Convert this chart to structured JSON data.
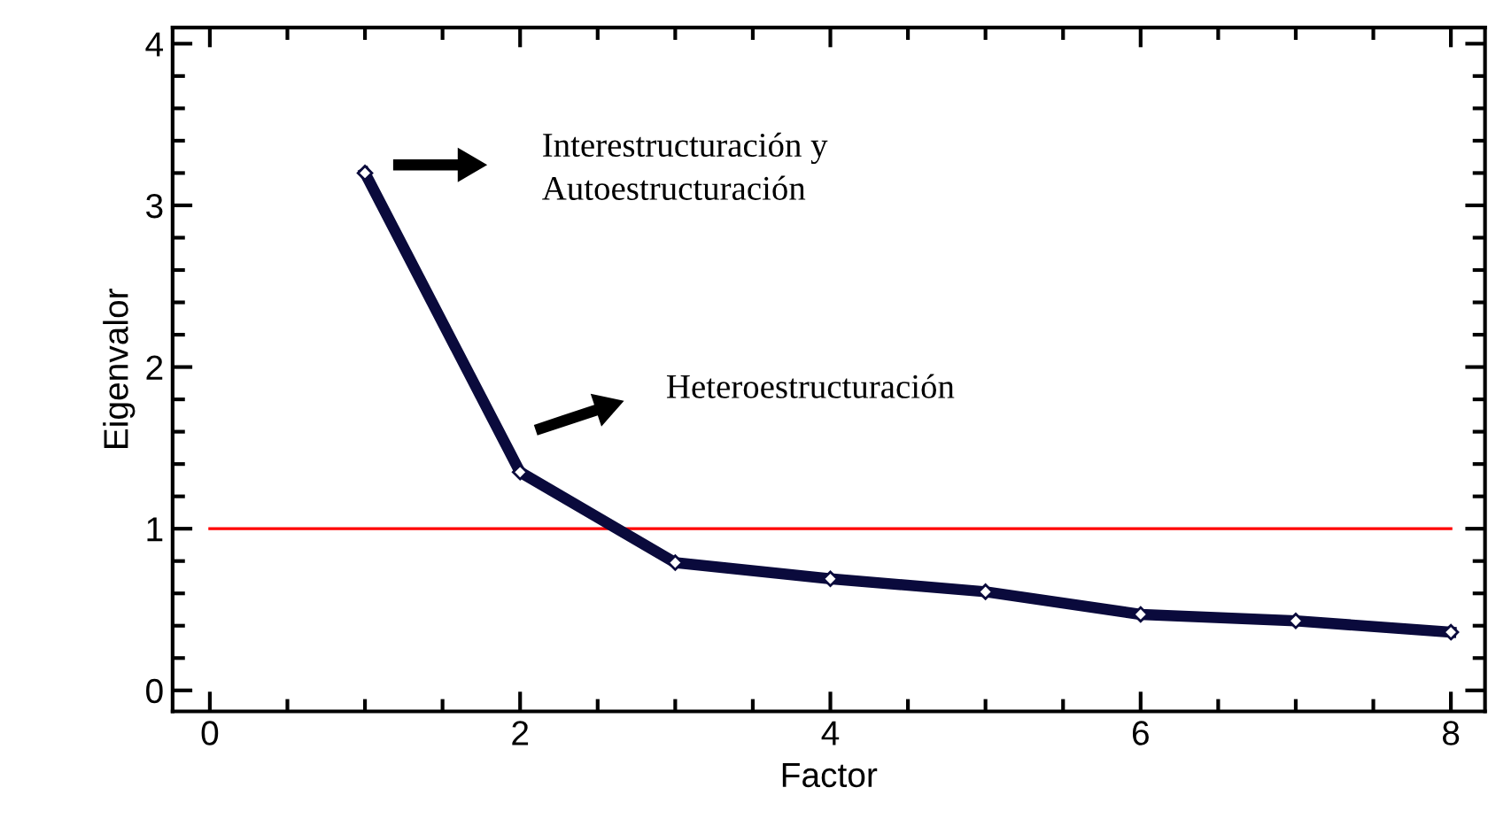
{
  "chart_data": {
    "type": "line",
    "xlabel": "Factor",
    "ylabel": "Eigenvalor",
    "x": [
      1,
      2,
      3,
      4,
      5,
      6,
      7,
      8
    ],
    "series": [
      {
        "color": "#0a0a3c",
        "values": [
          3.2,
          1.35,
          0.79,
          0.69,
          0.61,
          0.47,
          0.43,
          0.36
        ]
      }
    ],
    "xlim": [
      -0.24,
      8.22
    ],
    "ylim": [
      -0.13,
      4.1
    ],
    "xticks": [
      0,
      2,
      4,
      6,
      8
    ],
    "yticks": [
      0,
      1,
      2,
      3,
      4
    ],
    "ref_lines": [
      {
        "axis": "y",
        "value": 1,
        "color": "#ff0000"
      }
    ],
    "annotations": [
      "Interestructuración y\nAutoestructuración",
      "Heteroestructuración"
    ],
    "marker": "diamond",
    "line_style": "solid",
    "grid": false,
    "legend": false
  }
}
